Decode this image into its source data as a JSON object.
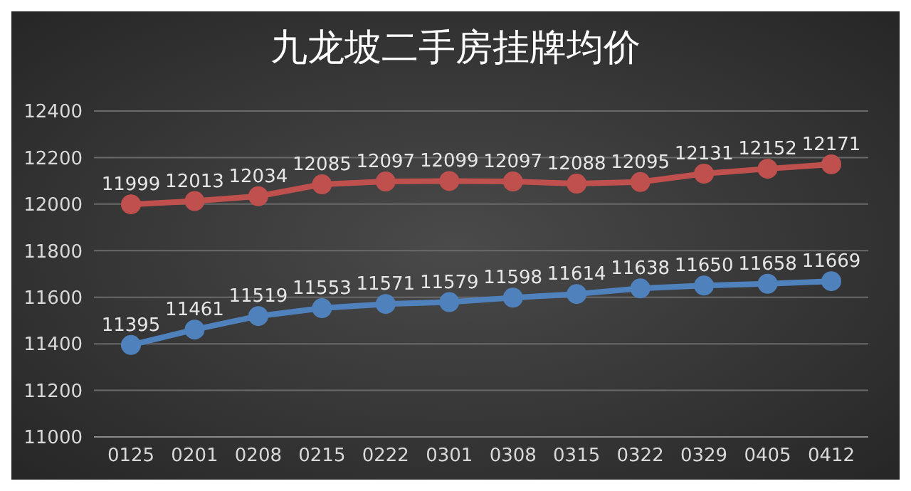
{
  "chart_data": {
    "type": "line",
    "title": "九龙坡二手房挂牌均价",
    "categories": [
      "0125",
      "0201",
      "0208",
      "0215",
      "0222",
      "0301",
      "0308",
      "0315",
      "0322",
      "0329",
      "0405",
      "0412"
    ],
    "series": [
      {
        "color": "#c0504d",
        "values": [
          11999,
          12013,
          12034,
          12085,
          12097,
          12099,
          12097,
          12088,
          12095,
          12131,
          12152,
          12171
        ]
      },
      {
        "color": "#4f81bd",
        "values": [
          11395,
          11461,
          11519,
          11553,
          11571,
          11579,
          11598,
          11614,
          11638,
          11650,
          11658,
          11669
        ]
      }
    ],
    "ylim": [
      11000,
      12400
    ],
    "yticks": [
      11000,
      11200,
      11400,
      11600,
      11800,
      12000,
      12200,
      12400
    ],
    "grid": "y",
    "legend": false,
    "marker": "circle",
    "line_style": "solid",
    "data_labels": true
  }
}
